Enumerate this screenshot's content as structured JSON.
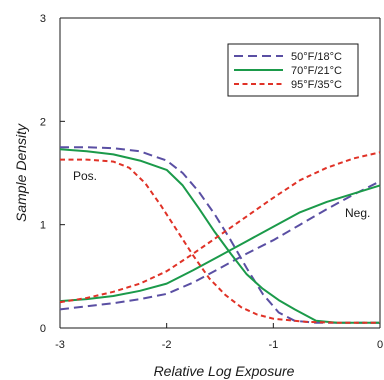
{
  "chart_data": {
    "type": "line",
    "xlabel": "Relative Log Exposure",
    "ylabel": "Sample Density",
    "xlim": [
      -3,
      0
    ],
    "ylim": [
      0,
      3
    ],
    "x_ticks": [
      "-3",
      "-2",
      "-1",
      "0"
    ],
    "y_ticks": [
      "0",
      "1",
      "2",
      "3"
    ],
    "grid": false,
    "legend_position": "top-right",
    "annotations": [
      {
        "text": "Pos."
      },
      {
        "text": "Neg."
      }
    ],
    "series": [
      {
        "name": "50°F/18°C",
        "color": "#5a4fa3",
        "dash": "dashed",
        "group": "Pos.",
        "points": [
          [
            -3.0,
            1.75
          ],
          [
            -2.75,
            1.75
          ],
          [
            -2.5,
            1.74
          ],
          [
            -2.25,
            1.71
          ],
          [
            -2.0,
            1.62
          ],
          [
            -1.85,
            1.5
          ],
          [
            -1.7,
            1.32
          ],
          [
            -1.55,
            1.1
          ],
          [
            -1.4,
            0.85
          ],
          [
            -1.25,
            0.58
          ],
          [
            -1.1,
            0.33
          ],
          [
            -0.95,
            0.15
          ],
          [
            -0.8,
            0.07
          ],
          [
            -0.6,
            0.05
          ],
          [
            -0.3,
            0.05
          ],
          [
            0.0,
            0.05
          ]
        ]
      },
      {
        "name": "50°F/18°C",
        "color": "#5a4fa3",
        "dash": "dashed",
        "group": "Neg.",
        "points": [
          [
            -3.0,
            0.18
          ],
          [
            -2.75,
            0.21
          ],
          [
            -2.5,
            0.24
          ],
          [
            -2.25,
            0.28
          ],
          [
            -2.0,
            0.33
          ],
          [
            -1.75,
            0.44
          ],
          [
            -1.5,
            0.58
          ],
          [
            -1.25,
            0.72
          ],
          [
            -1.0,
            0.85
          ],
          [
            -0.75,
            1.0
          ],
          [
            -0.5,
            1.15
          ],
          [
            -0.25,
            1.29
          ],
          [
            0.0,
            1.42
          ]
        ]
      },
      {
        "name": "70°F/21°C",
        "color": "#1b9a4a",
        "dash": "solid",
        "group": "Pos.",
        "points": [
          [
            -3.0,
            1.73
          ],
          [
            -2.75,
            1.71
          ],
          [
            -2.5,
            1.68
          ],
          [
            -2.25,
            1.62
          ],
          [
            -2.0,
            1.53
          ],
          [
            -1.85,
            1.38
          ],
          [
            -1.7,
            1.16
          ],
          [
            -1.55,
            0.93
          ],
          [
            -1.4,
            0.72
          ],
          [
            -1.25,
            0.52
          ],
          [
            -1.1,
            0.38
          ],
          [
            -0.95,
            0.27
          ],
          [
            -0.8,
            0.18
          ],
          [
            -0.6,
            0.07
          ],
          [
            -0.4,
            0.05
          ],
          [
            0.0,
            0.05
          ]
        ]
      },
      {
        "name": "70°F/21°C",
        "color": "#1b9a4a",
        "dash": "solid",
        "group": "Neg.",
        "points": [
          [
            -3.0,
            0.26
          ],
          [
            -2.75,
            0.28
          ],
          [
            -2.5,
            0.31
          ],
          [
            -2.25,
            0.36
          ],
          [
            -2.0,
            0.43
          ],
          [
            -1.75,
            0.56
          ],
          [
            -1.5,
            0.7
          ],
          [
            -1.25,
            0.84
          ],
          [
            -1.0,
            0.98
          ],
          [
            -0.75,
            1.12
          ],
          [
            -0.5,
            1.22
          ],
          [
            -0.25,
            1.3
          ],
          [
            0.0,
            1.38
          ]
        ]
      },
      {
        "name": "95°F/35°C",
        "color": "#e03227",
        "dash": "dotted",
        "group": "Pos.",
        "points": [
          [
            -3.0,
            1.63
          ],
          [
            -2.75,
            1.63
          ],
          [
            -2.5,
            1.61
          ],
          [
            -2.35,
            1.55
          ],
          [
            -2.2,
            1.4
          ],
          [
            -2.05,
            1.18
          ],
          [
            -1.9,
            0.94
          ],
          [
            -1.75,
            0.7
          ],
          [
            -1.6,
            0.48
          ],
          [
            -1.45,
            0.32
          ],
          [
            -1.3,
            0.2
          ],
          [
            -1.15,
            0.13
          ],
          [
            -1.0,
            0.09
          ],
          [
            -0.7,
            0.06
          ],
          [
            -0.4,
            0.05
          ],
          [
            0.0,
            0.05
          ]
        ]
      },
      {
        "name": "95°F/35°C",
        "color": "#e03227",
        "dash": "dotted",
        "group": "Neg.",
        "points": [
          [
            -3.0,
            0.25
          ],
          [
            -2.75,
            0.29
          ],
          [
            -2.5,
            0.35
          ],
          [
            -2.25,
            0.43
          ],
          [
            -2.0,
            0.55
          ],
          [
            -1.75,
            0.72
          ],
          [
            -1.5,
            0.9
          ],
          [
            -1.25,
            1.08
          ],
          [
            -1.0,
            1.26
          ],
          [
            -0.75,
            1.43
          ],
          [
            -0.5,
            1.55
          ],
          [
            -0.25,
            1.64
          ],
          [
            0.0,
            1.7
          ]
        ]
      }
    ]
  }
}
